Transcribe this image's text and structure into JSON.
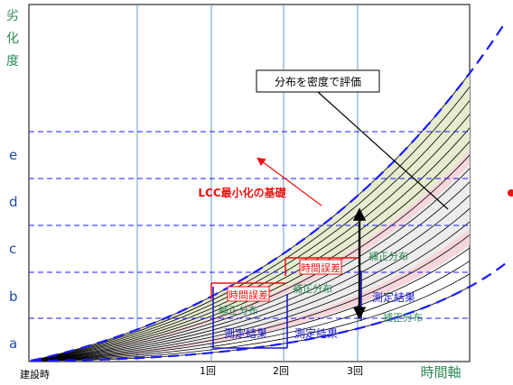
{
  "axes": {
    "y_title": [
      "劣",
      "化",
      "度"
    ],
    "x_title": "時間軸",
    "y_levels": [
      "a",
      "b",
      "c",
      "d",
      "e"
    ],
    "x_ticks": [
      "建設時",
      "1回",
      "2回",
      "3回"
    ]
  },
  "annotations": {
    "callout": "分布を密度で評価",
    "lcc": "LCC最小化の基礎",
    "time_error_1": "時間誤差",
    "time_error_2": "時間誤差",
    "correction_1": "補正分布",
    "correction_2": "補正分布",
    "correction_3": "補正分布",
    "correction_4": "補正分布",
    "measure_1": "測定結果",
    "measure_2": "測定結果",
    "measure_3": "測定結果"
  },
  "colors": {
    "axis_title": "#2e8b57",
    "level_label": "#1f4aa0",
    "dashed_line": "#1a1aff",
    "vertical_grid": "#6699cc",
    "curve": "#000000",
    "band_green": "#e6ecd0",
    "band_pink": "#f6d6da",
    "band_gray": "#ececec",
    "red_annotation": "#ee1111",
    "green_label": "#2e8b57",
    "blue_label": "#1a1acc"
  }
}
